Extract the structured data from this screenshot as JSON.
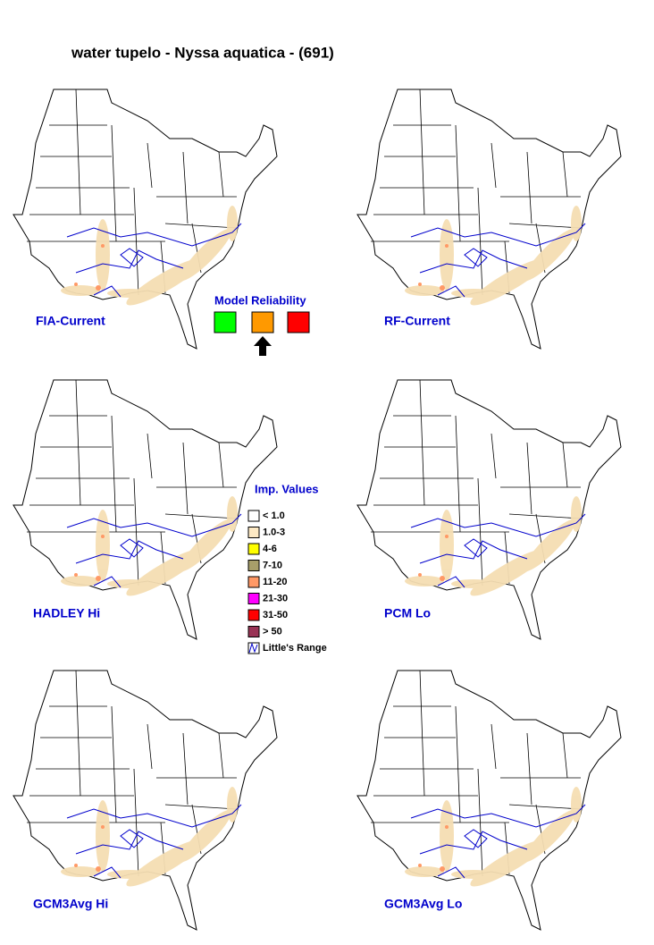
{
  "title": "water tupelo - Nyssa aquatica - (691)",
  "panels": [
    {
      "label": "FIA-Current"
    },
    {
      "label": "RF-Current"
    },
    {
      "label": "HADLEY Hi"
    },
    {
      "label": "PCM Lo"
    },
    {
      "label": "GCM3Avg Hi"
    },
    {
      "label": "GCM3Avg Lo"
    }
  ],
  "model_reliability": {
    "title": "Model Reliability"
  },
  "legend": {
    "title": "Imp. Values",
    "items": [
      "< 1.0",
      "1.0-3",
      "4-6",
      "7-10",
      "11-20",
      "21-30",
      "31-50",
      "> 50",
      "Little's Range"
    ]
  }
}
